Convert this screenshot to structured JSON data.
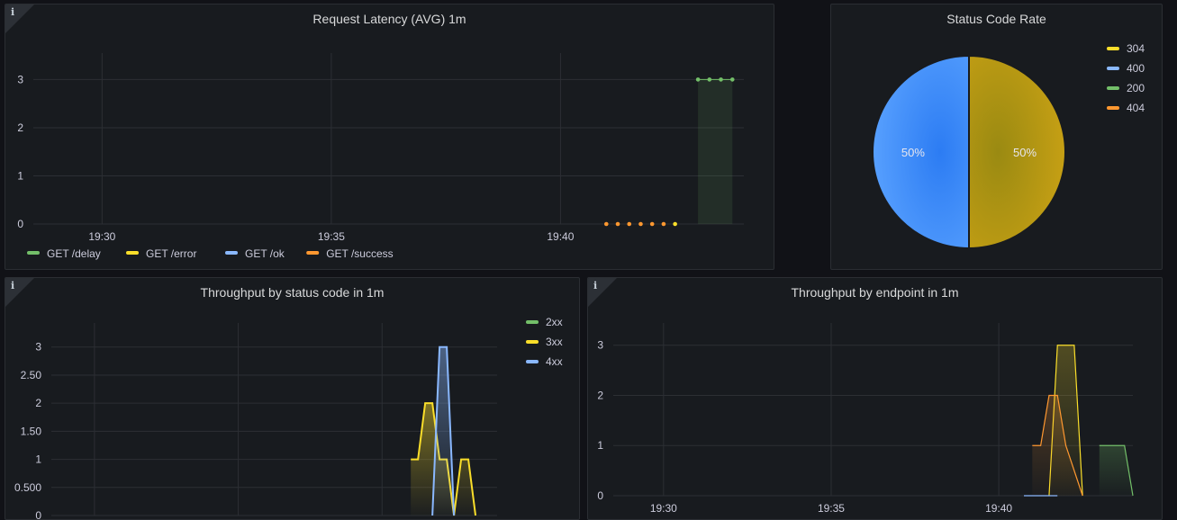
{
  "panels": {
    "latency": {
      "title": "Request Latency (AVG) 1m",
      "info_icon": "info-icon"
    },
    "status_rate": {
      "title": "Status Code Rate",
      "info_icon": "info-icon"
    },
    "throughput_status": {
      "title": "Throughput by status code in 1m",
      "info_icon": "info-icon"
    },
    "throughput_endpoint": {
      "title": "Throughput by endpoint in 1m",
      "info_icon": "info-icon"
    }
  },
  "colors": {
    "green": "#73bf69",
    "yellow": "#fade2a",
    "blue": "#8ab8ff",
    "orange": "#ff9830",
    "pie_blue": "#3d8bff",
    "pie_gold": "#c9a114"
  },
  "chart_data": [
    {
      "id": "latency",
      "type": "line",
      "title": "Request Latency (AVG) 1m",
      "xlabel": "",
      "ylabel": "",
      "x_ticks": [
        "19:30",
        "19:35",
        "19:40"
      ],
      "y_ticks": [
        "0",
        "1",
        "2",
        "3"
      ],
      "ylim": [
        0,
        3.4
      ],
      "grid": true,
      "legend": "bottom",
      "series": [
        {
          "name": "GET /delay",
          "color": "#73bf69",
          "x": [
            "19:43.0",
            "19:43.25",
            "19:43.5",
            "19:43.75"
          ],
          "x_min": [
            43.0,
            43.25,
            43.5,
            43.75
          ],
          "values": [
            3,
            3,
            3,
            3
          ],
          "fill": true
        },
        {
          "name": "GET /error",
          "color": "#fade2a",
          "x_min": [
            42.5
          ],
          "values": [
            0
          ]
        },
        {
          "name": "GET /ok",
          "color": "#8ab8ff",
          "x_min": [],
          "values": []
        },
        {
          "name": "GET /success",
          "color": "#ff9830",
          "x_min": [
            41.0,
            41.25,
            41.5,
            41.75,
            42.0,
            42.25
          ],
          "values": [
            0,
            0,
            0,
            0,
            0,
            0
          ]
        }
      ]
    },
    {
      "id": "status_rate",
      "type": "pie",
      "title": "Status Code Rate",
      "legend": "right",
      "slices": [
        {
          "label": "304",
          "value": 50,
          "color": "#c9a114",
          "text": "50%"
        },
        {
          "label": "400",
          "value": 50,
          "color": "#3d8bff",
          "text": "50%"
        },
        {
          "label": "200",
          "value": 0,
          "color": "#73bf69",
          "text": ""
        },
        {
          "label": "404",
          "value": 0,
          "color": "#ff9830",
          "text": ""
        }
      ],
      "legend_items": [
        {
          "label": "304",
          "color": "#fade2a"
        },
        {
          "label": "400",
          "color": "#8ab8ff"
        },
        {
          "label": "200",
          "color": "#73bf69"
        },
        {
          "label": "404",
          "color": "#ff9830"
        }
      ]
    },
    {
      "id": "throughput_status",
      "type": "area",
      "title": "Throughput by status code in 1m",
      "y_ticks": [
        "0",
        "0.500",
        "1",
        "1.50",
        "2",
        "2.50",
        "3"
      ],
      "ylim": [
        0,
        3.3
      ],
      "grid": true,
      "legend": "top-right",
      "series": [
        {
          "name": "2xx",
          "color": "#73bf69",
          "x_min": [],
          "values": []
        },
        {
          "name": "3xx",
          "color": "#fade2a",
          "x_min": [
            41.0,
            41.25,
            41.5,
            41.75,
            42.0,
            42.25,
            42.5,
            42.75,
            43.0,
            43.25
          ],
          "values": [
            1,
            1,
            2,
            2,
            1,
            1,
            0,
            1,
            1,
            0
          ]
        },
        {
          "name": "4xx",
          "color": "#8ab8ff",
          "x_min": [
            41.75,
            42.0,
            42.25,
            42.5
          ],
          "values": [
            0,
            3,
            3,
            0
          ]
        }
      ]
    },
    {
      "id": "throughput_endpoint",
      "type": "area",
      "title": "Throughput by endpoint in 1m",
      "x_ticks": [
        "19:30",
        "19:35",
        "19:40"
      ],
      "y_ticks": [
        "0",
        "1",
        "2",
        "3"
      ],
      "ylim": [
        0,
        3.3
      ],
      "grid": true,
      "legend": "none",
      "series": [
        {
          "name": "GET /delay",
          "color": "#73bf69",
          "x_min": [
            43.0,
            43.25,
            43.75,
            44.0
          ],
          "values": [
            1,
            1,
            1,
            0
          ]
        },
        {
          "name": "GET /error",
          "color": "#fade2a",
          "x_min": [
            41.5,
            41.75,
            42.25,
            42.5
          ],
          "values": [
            0,
            3,
            3,
            0
          ]
        },
        {
          "name": "GET /ok",
          "color": "#8ab8ff",
          "x_min": [
            40.75,
            41.75
          ],
          "values": [
            0,
            0
          ]
        },
        {
          "name": "GET /success",
          "color": "#ff9830",
          "x_min": [
            41.0,
            41.25,
            41.5,
            41.75,
            42.0,
            42.5
          ],
          "values": [
            1,
            1,
            2,
            2,
            1,
            0
          ]
        }
      ]
    }
  ]
}
